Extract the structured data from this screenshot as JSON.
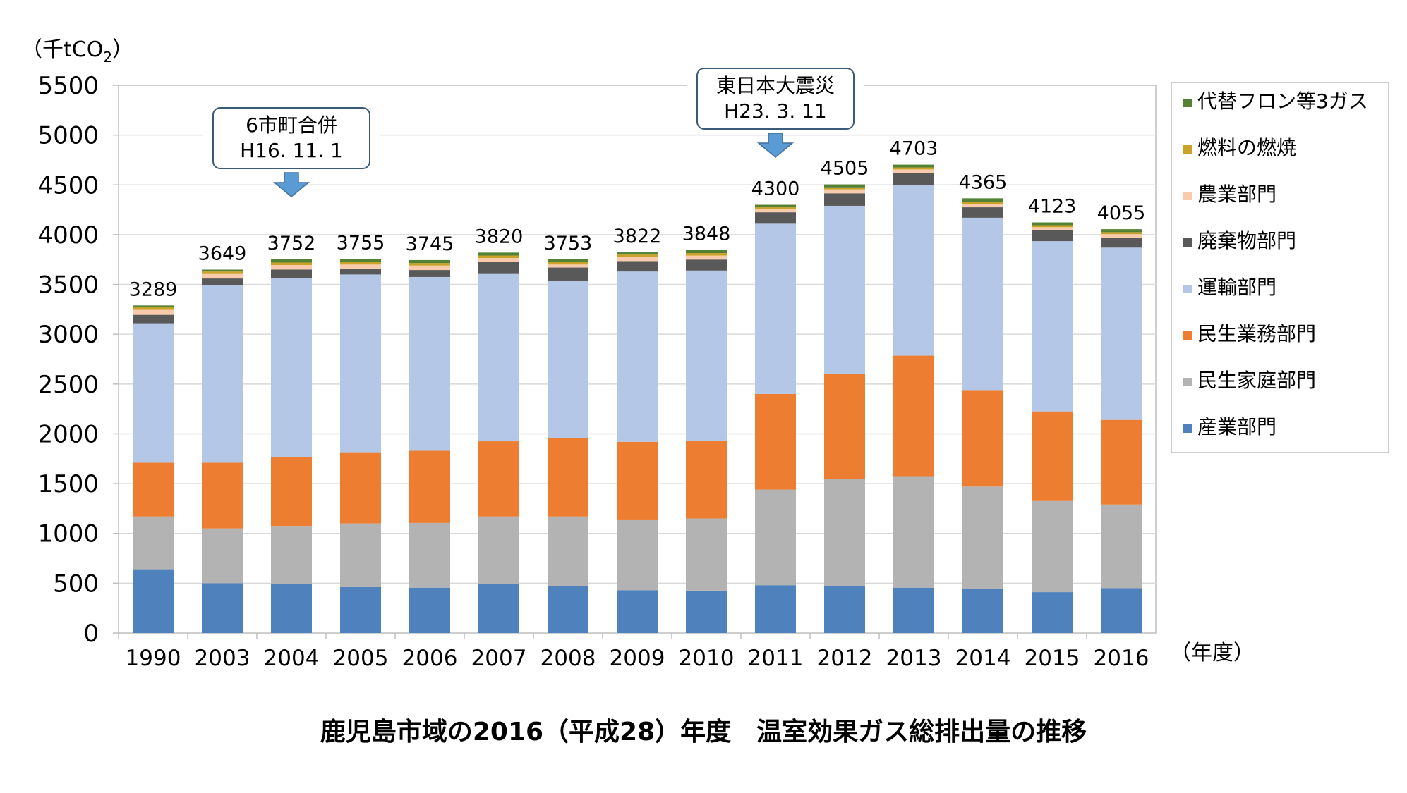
{
  "chart_data": {
    "type": "bar",
    "stacked": true,
    "title": "鹿児島市域の2016（平成28）年度　温室効果ガス総排出量の推移",
    "ylabel": "（千tCO₂）",
    "ylabel_main": "（千tCO",
    "ylabel_sub": "2",
    "ylabel_end": "）",
    "xlabel": "（年度）",
    "ylim": [
      0,
      5500
    ],
    "yticks": [
      0,
      500,
      1000,
      1500,
      2000,
      2500,
      3000,
      3500,
      4000,
      4500,
      5000,
      5500
    ],
    "grid": true,
    "legend_position": "right",
    "categories": [
      "1990",
      "2003",
      "2004",
      "2005",
      "2006",
      "2007",
      "2008",
      "2009",
      "2010",
      "2011",
      "2012",
      "2013",
      "2014",
      "2015",
      "2016"
    ],
    "totals": [
      3289,
      3649,
      3752,
      3755,
      3745,
      3820,
      3753,
      3822,
      3848,
      4300,
      4505,
      4703,
      4365,
      4123,
      4055
    ],
    "series": [
      {
        "name": "産業部門",
        "color": "#4f81bd",
        "values": [
          640,
          500,
          495,
          460,
          455,
          490,
          470,
          430,
          425,
          480,
          470,
          455,
          440,
          410,
          450
        ]
      },
      {
        "name": "民生家庭部門",
        "color": "#b3b3b3",
        "values": [
          530,
          550,
          580,
          640,
          650,
          680,
          700,
          710,
          725,
          960,
          1080,
          1120,
          1030,
          915,
          840
        ]
      },
      {
        "name": "民生業務部門",
        "color": "#ed7d31",
        "values": [
          540,
          660,
          690,
          715,
          725,
          755,
          785,
          780,
          780,
          960,
          1050,
          1210,
          970,
          900,
          850
        ]
      },
      {
        "name": "運輸部門",
        "color": "#b4c7e7",
        "values": [
          1400,
          1780,
          1800,
          1785,
          1745,
          1680,
          1580,
          1710,
          1710,
          1710,
          1690,
          1710,
          1730,
          1710,
          1730
        ]
      },
      {
        "name": "廃棄物部門",
        "color": "#595959",
        "values": [
          85,
          70,
          85,
          60,
          70,
          120,
          135,
          105,
          110,
          115,
          125,
          125,
          105,
          110,
          100
        ]
      },
      {
        "name": "農業部門",
        "color": "#f8cbad",
        "values": [
          50,
          45,
          45,
          40,
          45,
          40,
          30,
          40,
          40,
          35,
          40,
          35,
          35,
          30,
          35
        ]
      },
      {
        "name": "燃料の燃焼",
        "color": "#c9a227",
        "values": [
          25,
          25,
          25,
          25,
          25,
          25,
          25,
          25,
          25,
          15,
          20,
          20,
          20,
          20,
          20
        ]
      },
      {
        "name": "代替フロン等3ガス",
        "color": "#548235",
        "values": [
          19,
          19,
          32,
          30,
          30,
          30,
          28,
          22,
          33,
          25,
          30,
          28,
          35,
          28,
          30
        ]
      }
    ],
    "legend_order": [
      "代替フロン等3ガス",
      "燃料の燃焼",
      "農業部門",
      "廃棄物部門",
      "運輸部門",
      "民生業務部門",
      "民生家庭部門",
      "産業部門"
    ],
    "annotations": [
      {
        "category": "2004",
        "lines": [
          "6市町合併",
          "H16. 11. 1"
        ]
      },
      {
        "category": "2011",
        "lines": [
          "東日本大震災",
          "H23. 3. 11"
        ]
      }
    ]
  }
}
